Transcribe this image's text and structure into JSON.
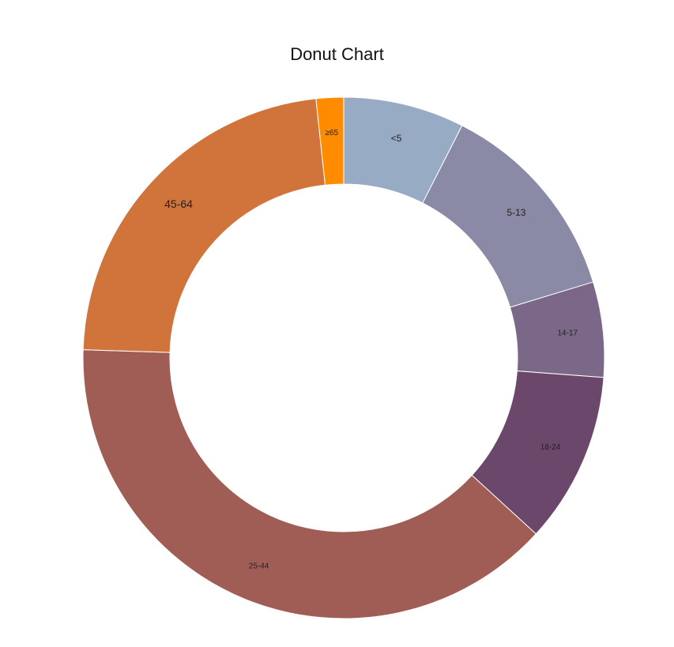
{
  "chart_data": {
    "type": "pie",
    "variant": "donut",
    "title": "Donut Chart",
    "legend": "none",
    "slices": [
      {
        "label": "<5",
        "value": 7.5,
        "color": "#98abc5"
      },
      {
        "label": "5-13",
        "value": 12.8,
        "color": "#8a89a6"
      },
      {
        "label": "14-17",
        "value": 5.9,
        "color": "#7b6888"
      },
      {
        "label": "18-24",
        "value": 10.6,
        "color": "#6b486b"
      },
      {
        "label": "25-44",
        "value": 38.7,
        "color": "#a05d56"
      },
      {
        "label": "45-64",
        "value": 22.8,
        "color": "#d0743c"
      },
      {
        "label": "≥65",
        "value": 1.7,
        "color": "#ff8c00"
      }
    ]
  }
}
